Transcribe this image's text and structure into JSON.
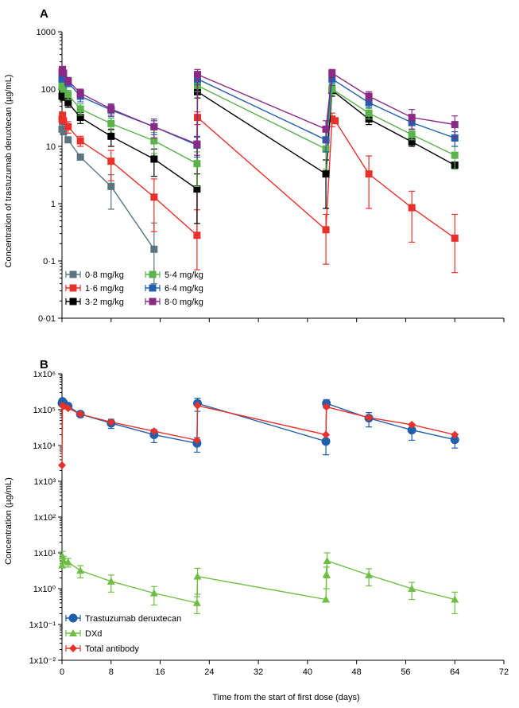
{
  "chart_data": [
    {
      "panel": "A",
      "type": "line",
      "ylabel": "Concentration of trastuzumab deruxtecan (µg/mL)",
      "yscale": "log",
      "ylim": [
        0.01,
        1000
      ],
      "yticks": [
        "0·01",
        "0·1",
        "1",
        "10",
        "100",
        "1000"
      ],
      "xlim": [
        0,
        72
      ],
      "legend_placement": "bottom-left",
      "series": [
        {
          "name": "0·8 mg/kg",
          "color": "#5b7480",
          "marker": "square",
          "x": [
            0,
            0.08,
            0.25,
            1,
            3,
            8,
            15
          ],
          "y": [
            20,
            27,
            18,
            13,
            6.5,
            2,
            0.16
          ],
          "err": [
            0,
            0,
            0,
            0,
            0,
            1.2,
            0.3
          ]
        },
        {
          "name": "1·6 mg/kg",
          "color": "#e8312b",
          "marker": "square",
          "x": [
            0,
            0.08,
            0.25,
            1,
            3,
            8,
            15,
            22,
            22.08,
            43,
            44,
            44.5,
            50,
            57,
            64
          ],
          "y": [
            30,
            35,
            28,
            22,
            12.5,
            5.5,
            1.3,
            0.28,
            32,
            0.35,
            30,
            28,
            3.3,
            0.85,
            0.25
          ],
          "err": [
            0,
            0,
            0,
            5,
            2.5,
            3,
            1.4,
            0.5,
            8,
            0.3,
            8,
            0,
            3.5,
            0.8,
            0.4
          ]
        },
        {
          "name": "3·2 mg/kg",
          "color": "#000000",
          "marker": "square",
          "x": [
            0,
            0.08,
            0.25,
            1,
            3,
            8,
            15,
            22,
            22.08,
            43,
            44,
            50,
            57,
            64
          ],
          "y": [
            75,
            85,
            72,
            58,
            32,
            15,
            6,
            1.8,
            90,
            3.3,
            95,
            30,
            12,
            4.7
          ],
          "err": [
            0,
            0,
            0,
            10,
            7,
            5,
            3,
            1.5,
            20,
            2.5,
            20,
            6,
            2,
            0.5
          ]
        },
        {
          "name": "5·4 mg/kg",
          "color": "#5ab34b",
          "marker": "square",
          "x": [
            0,
            0.08,
            0.25,
            1,
            3,
            8,
            15,
            22,
            22.08,
            43,
            44,
            50,
            57,
            64
          ],
          "y": [
            110,
            125,
            100,
            80,
            45,
            25,
            12.5,
            5,
            115,
            9,
            100,
            38,
            16,
            7
          ],
          "err": [
            0,
            0,
            0,
            15,
            10,
            6,
            5,
            3,
            25,
            5,
            20,
            8,
            3,
            3
          ]
        },
        {
          "name": "6·4 mg/kg",
          "color": "#1f5fad",
          "marker": "square",
          "x": [
            0,
            0.08,
            0.25,
            1,
            3,
            8,
            15,
            22,
            22.08,
            43,
            44,
            50,
            57,
            64
          ],
          "y": [
            150,
            180,
            160,
            130,
            75,
            43,
            22,
            10.5,
            150,
            13,
            150,
            58,
            26,
            14
          ],
          "err": [
            0,
            0,
            0,
            20,
            15,
            10,
            6,
            4,
            30,
            5,
            25,
            10,
            6,
            4
          ]
        },
        {
          "name": "8·0 mg/kg",
          "color": "#8a2a85",
          "marker": "square",
          "x": [
            0,
            0.08,
            0.25,
            1,
            3,
            8,
            15,
            22,
            22.08,
            43,
            44,
            50,
            57,
            64
          ],
          "y": [
            200,
            220,
            190,
            140,
            85,
            45,
            22,
            11,
            180,
            20,
            190,
            75,
            32,
            24
          ],
          "err": [
            0,
            0,
            0,
            20,
            15,
            10,
            8,
            4,
            40,
            8,
            30,
            15,
            12,
            10
          ]
        }
      ]
    },
    {
      "panel": "B",
      "type": "line",
      "ylabel": "Concentration (µg/mL)",
      "xlabel": "Time from the start of first dose (days)",
      "yscale": "log",
      "ylim": [
        0.01,
        1000000
      ],
      "yticks": [
        "1x10⁻²",
        "1x10⁻¹",
        "1x10⁰",
        "1x10¹",
        "1x10²",
        "1x10³",
        "1x10⁴",
        "1x10⁵",
        "1x10⁶"
      ],
      "xlim": [
        0,
        72
      ],
      "xticks": [
        0,
        8,
        16,
        24,
        32,
        40,
        48,
        56,
        64,
        72
      ],
      "legend_placement": "bottom-left",
      "series": [
        {
          "name": "Trastuzumab deruxtecan",
          "color": "#1f5fad",
          "marker": "circle",
          "x": [
            0,
            0.08,
            0.25,
            1,
            3,
            8,
            15,
            22,
            22.08,
            43,
            43.08,
            50,
            57,
            64
          ],
          "y": [
            150000,
            170000,
            155000,
            125000,
            75000,
            42000,
            20000,
            11500,
            150000,
            13000,
            150000,
            58000,
            27000,
            14500
          ],
          "err": [
            0,
            30000,
            20000,
            20000,
            12000,
            12000,
            8000,
            5000,
            60000,
            7500,
            40000,
            25000,
            13000,
            6000
          ]
        },
        {
          "name": "DXd",
          "color": "#6fbe44",
          "marker": "triangle",
          "x": [
            0,
            0.08,
            0.25,
            1,
            3,
            8,
            15,
            22,
            22.08,
            43,
            43.08,
            43.2,
            50,
            57,
            64
          ],
          "y": [
            4.5,
            8,
            6,
            5.5,
            3.2,
            1.6,
            0.75,
            0.4,
            2.2,
            0.5,
            2.5,
            6,
            2.4,
            1.0,
            0.5
          ],
          "err": [
            0,
            3,
            2,
            1.5,
            1.2,
            0.8,
            0.4,
            0.2,
            1.5,
            0,
            1.5,
            4,
            1.2,
            0.5,
            0.3
          ]
        },
        {
          "name": "Total antibody",
          "color": "#e8312b",
          "marker": "diamond",
          "x": [
            0,
            0.08,
            0.25,
            1,
            3,
            8,
            15,
            22,
            22.08,
            43,
            43.08,
            50,
            57,
            64
          ],
          "y": [
            2800,
            130000,
            125000,
            110000,
            75000,
            45000,
            25000,
            14000,
            130000,
            20000,
            120000,
            60000,
            38000,
            20000
          ],
          "err": [
            0,
            0,
            0,
            0,
            0,
            0,
            0,
            0,
            0,
            0,
            0,
            0,
            0,
            0
          ]
        }
      ]
    }
  ]
}
